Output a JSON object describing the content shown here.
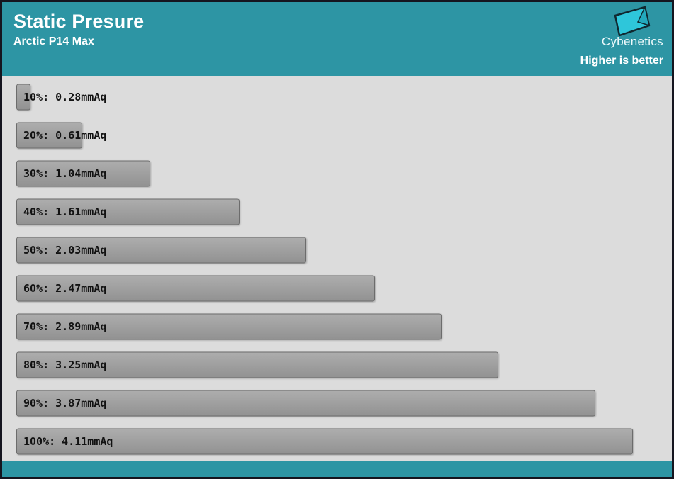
{
  "header": {
    "title": "Static Presure",
    "subtitle": "Arctic P14 Max",
    "brand": "Cybenetics",
    "note": "Higher is better",
    "bg_color": "#2d95a4",
    "logo_color": "#2ec6da"
  },
  "chart_data": {
    "type": "bar",
    "orientation": "horizontal",
    "title": "Static Presure",
    "subtitle": "Arctic P14 Max",
    "note": "Higher is better",
    "unit": "mmAq",
    "categories": [
      "10%",
      "20%",
      "30%",
      "40%",
      "50%",
      "60%",
      "70%",
      "80%",
      "90%",
      "100%"
    ],
    "values": [
      0.28,
      0.61,
      1.04,
      1.61,
      2.03,
      2.47,
      2.89,
      3.25,
      3.87,
      4.11
    ],
    "labels": [
      "10%: 0.28mmAq",
      "20%: 0.61mmAq",
      "30%: 1.04mmAq",
      "40%: 1.61mmAq",
      "50%: 2.03mmAq",
      "60%: 2.47mmAq",
      "70%: 2.89mmAq",
      "80%: 3.25mmAq",
      "90%: 3.87mmAq",
      "100%: 4.11mmAq"
    ],
    "xlim": [
      0,
      4.2
    ],
    "legend": false,
    "grid": false,
    "bar_color": "#9e9e9e",
    "plot_bg": "#dcdcdc"
  }
}
